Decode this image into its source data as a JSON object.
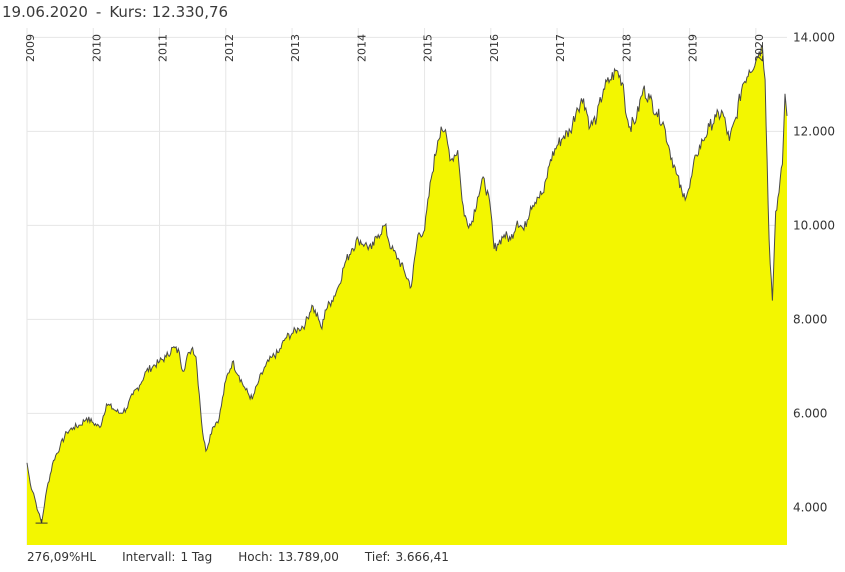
{
  "header": {
    "date": "19.06.2020",
    "separator": "-",
    "price_label": "Kurs:",
    "price_value": "12.330,76"
  },
  "footer": {
    "performance": "276,09%HL",
    "interval_label": "Intervall:",
    "interval_value": "1 Tag",
    "high_label": "Hoch:",
    "high_value": "13.789,00",
    "low_label": "Tief:",
    "low_value": "3.666,41"
  },
  "colors": {
    "fill": "#f3f600",
    "line": "#4a4a4a",
    "grid": "#e6e6e6",
    "marker": "#333333"
  },
  "chart_data": {
    "type": "area",
    "x_ticks": [
      "2009",
      "2010",
      "2011",
      "2012",
      "2013",
      "2014",
      "2015",
      "2016",
      "2017",
      "2018",
      "2019",
      "2020"
    ],
    "y_ticks": [
      "4.000",
      "6.000",
      "8.000",
      "10.000",
      "12.000",
      "14.000"
    ],
    "y_tick_values": [
      4000,
      6000,
      8000,
      10000,
      12000,
      14000
    ],
    "ylim": [
      3200,
      14200
    ],
    "xlim": [
      2009.0,
      2020.47
    ],
    "grid": true,
    "series": [
      {
        "x": [
          2009.0,
          2009.05,
          2009.1,
          2009.17,
          2009.22,
          2009.3,
          2009.4,
          2009.5,
          2009.6,
          2009.7,
          2009.8,
          2009.9,
          2010.0,
          2010.1,
          2010.2,
          2010.3,
          2010.4,
          2010.5,
          2010.6,
          2010.7,
          2010.8,
          2010.9,
          2011.0,
          2011.1,
          2011.2,
          2011.3,
          2011.35,
          2011.45,
          2011.5,
          2011.55,
          2011.6,
          2011.65,
          2011.7,
          2011.8,
          2011.9,
          2012.0,
          2012.1,
          2012.2,
          2012.3,
          2012.4,
          2012.5,
          2012.6,
          2012.7,
          2012.8,
          2012.9,
          2013.0,
          2013.1,
          2013.2,
          2013.3,
          2013.4,
          2013.45,
          2013.5,
          2013.6,
          2013.7,
          2013.8,
          2013.9,
          2014.0,
          2014.1,
          2014.2,
          2014.3,
          2014.4,
          2014.5,
          2014.6,
          2014.7,
          2014.8,
          2014.9,
          2015.0,
          2015.1,
          2015.2,
          2015.25,
          2015.3,
          2015.4,
          2015.5,
          2015.55,
          2015.6,
          2015.7,
          2015.8,
          2015.9,
          2016.0,
          2016.05,
          2016.1,
          2016.2,
          2016.3,
          2016.4,
          2016.5,
          2016.6,
          2016.7,
          2016.8,
          2016.9,
          2017.0,
          2017.1,
          2017.2,
          2017.3,
          2017.4,
          2017.5,
          2017.6,
          2017.7,
          2017.8,
          2017.9,
          2018.0,
          2018.05,
          2018.1,
          2018.2,
          2018.3,
          2018.4,
          2018.5,
          2018.6,
          2018.7,
          2018.8,
          2018.9,
          2019.0,
          2019.1,
          2019.2,
          2019.3,
          2019.4,
          2019.5,
          2019.6,
          2019.7,
          2019.8,
          2019.9,
          2020.0,
          2020.05,
          2020.1,
          2020.14,
          2020.17,
          2020.2,
          2020.25,
          2020.3,
          2020.35,
          2020.4,
          2020.44,
          2020.47
        ],
        "y": [
          4950,
          4500,
          4300,
          3900,
          3666,
          4400,
          5000,
          5300,
          5600,
          5700,
          5750,
          5900,
          5800,
          5700,
          6200,
          6100,
          6000,
          6100,
          6400,
          6600,
          6900,
          7000,
          7100,
          7200,
          7400,
          7300,
          6900,
          7300,
          7400,
          7200,
          6400,
          5600,
          5200,
          5700,
          5900,
          6700,
          7100,
          6800,
          6500,
          6300,
          6700,
          7000,
          7200,
          7300,
          7600,
          7700,
          7800,
          7900,
          8300,
          8000,
          7800,
          8200,
          8400,
          8700,
          9200,
          9500,
          9700,
          9600,
          9500,
          9800,
          10000,
          9500,
          9300,
          9000,
          8700,
          9800,
          9900,
          11000,
          11800,
          12100,
          12000,
          11400,
          11600,
          10800,
          10200,
          10000,
          10600,
          11000,
          10300,
          9500,
          9600,
          9800,
          9700,
          10100,
          9900,
          10400,
          10600,
          10700,
          11400,
          11700,
          11900,
          12000,
          12500,
          12700,
          12100,
          12300,
          12900,
          13100,
          13300,
          13000,
          12300,
          12100,
          12300,
          12900,
          12700,
          12400,
          12200,
          11600,
          11100,
          10600,
          10800,
          11500,
          11800,
          12100,
          12300,
          12400,
          11800,
          12300,
          13000,
          13300,
          13500,
          13700,
          13789,
          13100,
          11400,
          9700,
          8400,
          10300,
          10700,
          11300,
          12800,
          12330
        ]
      }
    ]
  }
}
